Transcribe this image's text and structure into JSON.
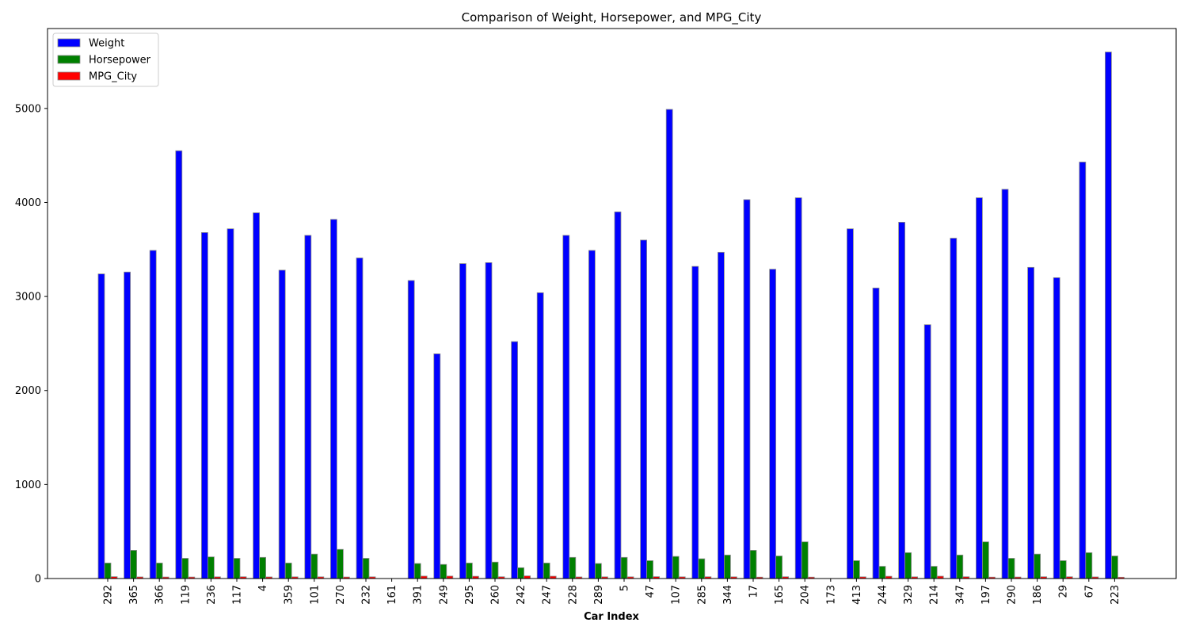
{
  "chart_data": {
    "type": "bar",
    "title": "Comparison of Weight, Horsepower, and MPG_City",
    "xlabel": "Car Index",
    "ylabel": "",
    "ylim": [
      0,
      5850
    ],
    "yticks": [
      0,
      1000,
      2000,
      3000,
      4000,
      5000
    ],
    "grid": false,
    "legend_position": "top-left",
    "categories": [
      "292",
      "365",
      "366",
      "119",
      "236",
      "117",
      "4",
      "359",
      "101",
      "270",
      "232",
      "161",
      "391",
      "249",
      "295",
      "260",
      "242",
      "247",
      "228",
      "289",
      "5",
      "47",
      "107",
      "285",
      "344",
      "17",
      "165",
      "204",
      "173",
      "413",
      "244",
      "329",
      "214",
      "347",
      "197",
      "290",
      "186",
      "29",
      "67",
      "223"
    ],
    "series": [
      {
        "name": "Weight",
        "color": "#0000ff",
        "values": [
          3240,
          3260,
          3490,
          4550,
          3680,
          3720,
          3890,
          3280,
          3650,
          3820,
          3410,
          0,
          3170,
          2390,
          3350,
          3360,
          2520,
          3040,
          3650,
          3490,
          3900,
          3600,
          4990,
          3320,
          3470,
          4030,
          3290,
          4050,
          0,
          3720,
          3090,
          3790,
          2700,
          3620,
          4050,
          4140,
          3310,
          3200,
          4430,
          5600
        ]
      },
      {
        "name": "Horsepower",
        "color": "#008000",
        "values": [
          165,
          300,
          165,
          215,
          230,
          215,
          225,
          165,
          260,
          310,
          215,
          0,
          160,
          150,
          165,
          175,
          115,
          165,
          225,
          160,
          225,
          190,
          235,
          210,
          250,
          300,
          240,
          390,
          0,
          190,
          130,
          275,
          130,
          250,
          390,
          215,
          260,
          190,
          275,
          240
        ]
      },
      {
        "name": "MPG_City",
        "color": "#ff0000",
        "values": [
          20,
          17,
          16,
          16,
          18,
          19,
          17,
          18,
          18,
          16,
          18,
          0,
          26,
          26,
          24,
          19,
          28,
          25,
          17,
          18,
          18,
          20,
          18,
          19,
          18,
          15,
          19,
          15,
          0,
          18,
          24,
          18,
          25,
          19,
          15,
          16,
          19,
          19,
          17,
          14
        ]
      }
    ]
  }
}
